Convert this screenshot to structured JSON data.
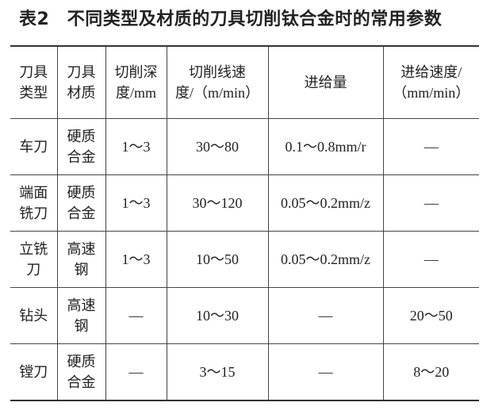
{
  "title": "表2　不同类型及材质的刀具切削钛合金时的常用参数",
  "table": {
    "headers": [
      [
        "刀具",
        "类型"
      ],
      [
        "刀具",
        "材质"
      ],
      [
        "切削深",
        "度/mm"
      ],
      [
        "切削线速",
        "度/（m/min）"
      ],
      [
        "进给量"
      ],
      [
        "进给速度/",
        "（mm/min）"
      ]
    ],
    "rows": [
      [
        [
          "车刀"
        ],
        [
          "硬质",
          "合金"
        ],
        [
          "1～3"
        ],
        [
          "30～80"
        ],
        [
          "0.1～0.8mm/r"
        ],
        [
          "—"
        ]
      ],
      [
        [
          "端面",
          "铣刀"
        ],
        [
          "硬质",
          "合金"
        ],
        [
          "1～3"
        ],
        [
          "30～120"
        ],
        [
          "0.05～0.2mm/z"
        ],
        [
          "—"
        ]
      ],
      [
        [
          "立铣",
          "刀"
        ],
        [
          "高速",
          "钢"
        ],
        [
          "1～3"
        ],
        [
          "10～50"
        ],
        [
          "0.05～0.2mm/z"
        ],
        [
          "—"
        ]
      ],
      [
        [
          "钻头"
        ],
        [
          "高速",
          "钢"
        ],
        [
          "—"
        ],
        [
          "10～30"
        ],
        [
          "—"
        ],
        [
          "20～50"
        ]
      ],
      [
        [
          "镗刀"
        ],
        [
          "硬质",
          "合金"
        ],
        [
          "—"
        ],
        [
          "3～15"
        ],
        [
          "—"
        ],
        [
          "8～20"
        ]
      ]
    ]
  }
}
